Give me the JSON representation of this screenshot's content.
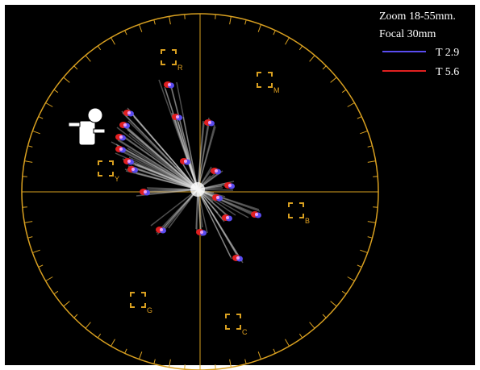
{
  "legend": {
    "lines": [
      "Zoom 18-55mm.",
      "Focal 30mm"
    ],
    "items": [
      {
        "label": "T 2.9",
        "color": "#5a4cf0"
      },
      {
        "label": "T 5.6",
        "color": "#e02020"
      }
    ]
  },
  "targets": [
    {
      "label": "R"
    },
    {
      "label": "M"
    },
    {
      "label": "Y"
    },
    {
      "label": "B"
    },
    {
      "label": "G"
    },
    {
      "label": "C"
    }
  ]
}
